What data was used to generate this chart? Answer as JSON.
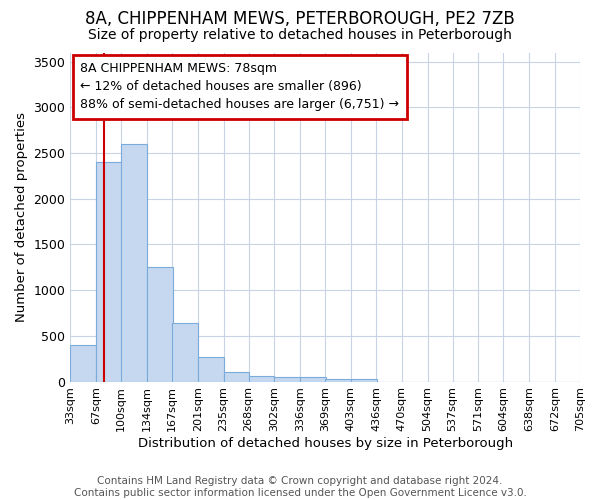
{
  "title": "8A, CHIPPENHAM MEWS, PETERBOROUGH, PE2 7ZB",
  "subtitle": "Size of property relative to detached houses in Peterborough",
  "xlabel": "Distribution of detached houses by size in Peterborough",
  "ylabel": "Number of detached properties",
  "footer_line1": "Contains HM Land Registry data © Crown copyright and database right 2024.",
  "footer_line2": "Contains public sector information licensed under the Open Government Licence v3.0.",
  "bins": [
    33,
    67,
    100,
    134,
    167,
    201,
    235,
    268,
    302,
    336,
    369,
    403,
    436,
    470,
    504,
    537,
    571,
    604,
    638,
    672,
    705
  ],
  "bar_values": [
    400,
    2400,
    2600,
    1250,
    640,
    270,
    100,
    60,
    55,
    50,
    25,
    25,
    0,
    0,
    0,
    0,
    0,
    0,
    0,
    0
  ],
  "bar_color": "#c5d8f0",
  "bar_edge_color": "#7aabda",
  "bar_edge_width": 0.8,
  "grid_color": "#c8d4e4",
  "bg_color": "#ffffff",
  "ylim": [
    0,
    3600
  ],
  "yticks": [
    0,
    500,
    1000,
    1500,
    2000,
    2500,
    3000,
    3500
  ],
  "property_size": 78,
  "smaller_pct": 12,
  "smaller_count": 896,
  "larger_pct": 88,
  "larger_count": 6751,
  "redline_color": "#cc0000",
  "annotation_box_edgecolor": "#cc0000",
  "title_fontsize": 12,
  "subtitle_fontsize": 10,
  "tick_label_fontsize": 8,
  "axis_label_fontsize": 9.5,
  "annotation_fontsize": 9,
  "footer_fontsize": 7.5
}
